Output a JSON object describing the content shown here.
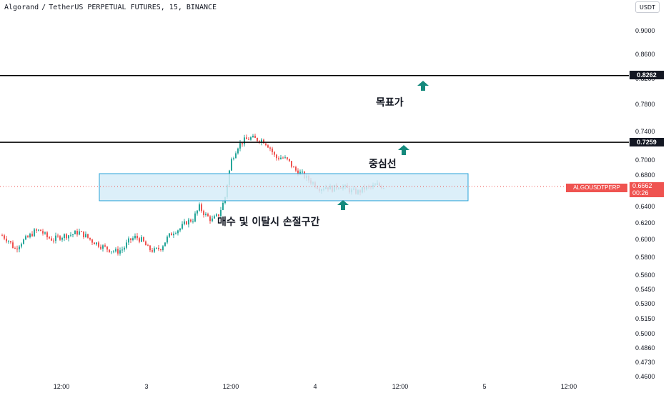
{
  "header": {
    "symbol": "Algorand",
    "pair": "TetherUS PERPETUAL FUTURES",
    "interval": "15",
    "exchange": "BINANCE",
    "currency": "USDT"
  },
  "price_axis": {
    "ticks": [
      "0.9000",
      "0.8600",
      "0.8200",
      "0.7800",
      "0.7400",
      "0.7000",
      "0.6800",
      "0.6400",
      "0.6200",
      "0.6000",
      "0.5800",
      "0.5600",
      "0.5450",
      "0.5300",
      "0.5150",
      "0.5000",
      "0.4860",
      "0.4730",
      "0.4600"
    ],
    "target_level": "0.8262",
    "center_level": "0.7259",
    "last_price": "0.6662",
    "countdown": "00:26",
    "symbol_tag": "ALGOUSDTPERP"
  },
  "time_axis": {
    "ticks": [
      "12:00",
      "3",
      "12:00",
      "4",
      "12:00",
      "5",
      "12:00"
    ]
  },
  "annotations": {
    "target": "목표가",
    "center": "중심선",
    "zone": "매수 및 이탈시 손절구간"
  },
  "colors": {
    "up": "#26a69a",
    "down": "#ef5350",
    "level_line": "#000000",
    "zone_fill": "#d6ecf8",
    "zone_border": "#2aa3d8",
    "arrow": "#14897c",
    "price_line": "#ef5350"
  },
  "chart_data": {
    "type": "candlestick",
    "title": "Algorand / TetherUS PERPETUAL FUTURES, 15, BINANCE",
    "y_scale": "log",
    "ylim": [
      0.456,
      0.95
    ],
    "horizontal_levels": [
      0.8262,
      0.7259
    ],
    "zone": {
      "from_price": 0.648,
      "to_price": 0.683
    },
    "last_price": 0.6662,
    "path_closes": [
      0.606,
      0.6,
      0.59,
      0.598,
      0.603,
      0.61,
      0.612,
      0.604,
      0.601,
      0.604,
      0.606,
      0.607,
      0.61,
      0.606,
      0.6,
      0.596,
      0.592,
      0.589,
      0.587,
      0.59,
      0.6,
      0.604,
      0.6,
      0.59,
      0.588,
      0.592,
      0.603,
      0.611,
      0.614,
      0.622,
      0.625,
      0.64,
      0.63,
      0.624,
      0.63,
      0.65,
      0.7,
      0.72,
      0.728,
      0.732,
      0.73,
      0.729,
      0.72,
      0.704,
      0.705,
      0.7,
      0.688,
      0.683,
      0.676,
      0.67,
      0.664,
      0.666,
      0.663,
      0.668,
      0.664,
      0.66,
      0.659,
      0.664,
      0.665,
      0.668,
      0.666
    ]
  }
}
